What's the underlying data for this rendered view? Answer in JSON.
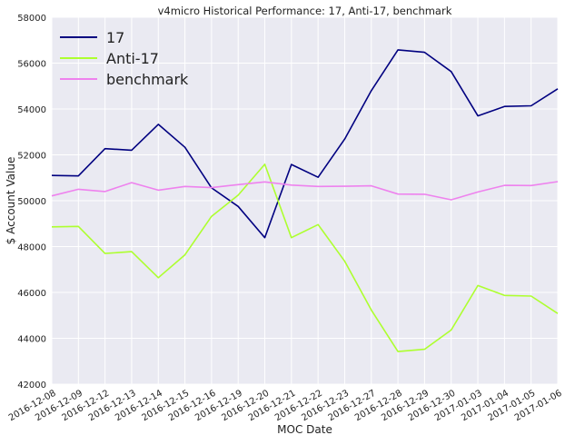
{
  "chart_data": {
    "type": "line",
    "title": "v4micro Historical Performance: 17, Anti-17, benchmark",
    "xlabel": "MOC Date",
    "ylabel": "$ Account Value",
    "ylim": [
      42000,
      58000
    ],
    "yticks": [
      42000,
      44000,
      46000,
      48000,
      50000,
      52000,
      54000,
      56000,
      58000
    ],
    "grid": true,
    "legend_position": "upper-left",
    "categories": [
      "2016-12-08",
      "2016-12-09",
      "2016-12-12",
      "2016-12-13",
      "2016-12-14",
      "2016-12-15",
      "2016-12-16",
      "2016-12-19",
      "2016-12-20",
      "2016-12-21",
      "2016-12-22",
      "2016-12-23",
      "2016-12-27",
      "2016-12-28",
      "2016-12-29",
      "2016-12-30",
      "2017-01-03",
      "2017-01-04",
      "2017-01-05",
      "2017-01-06"
    ],
    "series": [
      {
        "name": "17",
        "color": "#000080",
        "values": [
          51100,
          51080,
          52270,
          52200,
          53330,
          52330,
          50560,
          49750,
          48390,
          51580,
          51020,
          52690,
          54800,
          56580,
          56470,
          55630,
          53700,
          54110,
          54140,
          54880
        ]
      },
      {
        "name": "Anti-17",
        "color": "#adff2f",
        "values": [
          48860,
          48880,
          47700,
          47780,
          46640,
          47640,
          49320,
          50240,
          51590,
          48390,
          48960,
          47360,
          45230,
          43420,
          43520,
          44360,
          46300,
          45870,
          45840,
          45080
        ]
      },
      {
        "name": "benchmark",
        "color": "#ee82ee",
        "values": [
          50210,
          50500,
          50400,
          50790,
          50460,
          50620,
          50570,
          50700,
          50820,
          50680,
          50620,
          50630,
          50650,
          50290,
          50280,
          50040,
          50380,
          50670,
          50660,
          50830
        ]
      }
    ]
  }
}
